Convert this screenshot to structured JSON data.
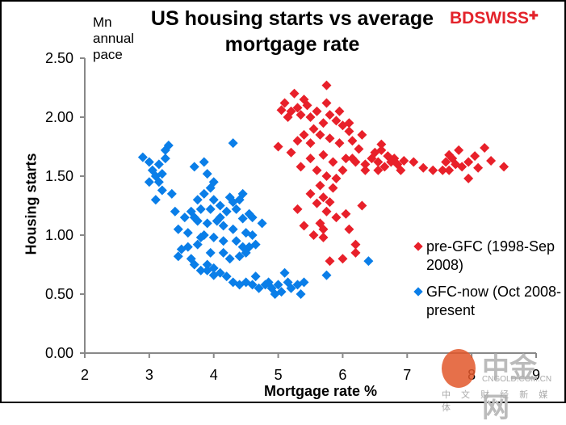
{
  "logo": {
    "text_bd": "BD",
    "text_swiss": "SWISS",
    "brand_color": "#e3232b"
  },
  "watermark": {
    "name": "中金网",
    "url": "CNGOLD.COM.CN",
    "subtitle": "中 文 财 经 新 媒 体"
  },
  "chart_data": {
    "type": "scatter",
    "title": "US housing starts vs average mortgage rate",
    "unit_label": "Mn annual pace",
    "xlabel": "Mortgage rate %",
    "ylabel": "Housing starts",
    "xlim": [
      2,
      9
    ],
    "ylim": [
      0,
      2.5
    ],
    "xticks": [
      "2",
      "3",
      "4",
      "5",
      "6",
      "7",
      "8",
      "9"
    ],
    "yticks": [
      "0.00",
      "0.50",
      "1.00",
      "1.50",
      "2.00",
      "2.50"
    ],
    "grid": false,
    "legend_position": "right",
    "series": [
      {
        "name": "pre-GFC (1998-Sep 2008)",
        "color": "#e8202a",
        "points": [
          [
            5.75,
            2.27
          ],
          [
            5.25,
            2.2
          ],
          [
            5.4,
            2.15
          ],
          [
            5.1,
            2.12
          ],
          [
            5.3,
            2.08
          ],
          [
            5.45,
            2.1
          ],
          [
            5.2,
            2.05
          ],
          [
            5.35,
            2.02
          ],
          [
            5.15,
            2.0
          ],
          [
            5.05,
            2.06
          ],
          [
            5.5,
            2.0
          ],
          [
            5.6,
            2.05
          ],
          [
            5.75,
            2.12
          ],
          [
            5.8,
            2.02
          ],
          [
            5.9,
            1.97
          ],
          [
            5.7,
            1.95
          ],
          [
            6.0,
            1.93
          ],
          [
            6.1,
            1.88
          ],
          [
            5.55,
            1.9
          ],
          [
            5.4,
            1.85
          ],
          [
            5.65,
            1.85
          ],
          [
            5.3,
            1.8
          ],
          [
            5.5,
            1.78
          ],
          [
            5.8,
            1.82
          ],
          [
            5.95,
            1.78
          ],
          [
            6.15,
            1.8
          ],
          [
            6.3,
            1.85
          ],
          [
            6.25,
            1.73
          ],
          [
            5.0,
            1.75
          ],
          [
            5.2,
            1.7
          ],
          [
            5.5,
            1.65
          ],
          [
            5.7,
            1.68
          ],
          [
            5.85,
            1.62
          ],
          [
            6.05,
            1.65
          ],
          [
            6.2,
            1.62
          ],
          [
            5.35,
            1.58
          ],
          [
            5.6,
            1.55
          ],
          [
            5.75,
            1.5
          ],
          [
            5.9,
            1.48
          ],
          [
            6.0,
            1.55
          ],
          [
            6.35,
            1.6
          ],
          [
            6.45,
            1.65
          ],
          [
            6.5,
            1.7
          ],
          [
            6.6,
            1.72
          ],
          [
            6.55,
            1.62
          ],
          [
            6.7,
            1.67
          ],
          [
            6.65,
            1.58
          ],
          [
            6.75,
            1.62
          ],
          [
            6.8,
            1.65
          ],
          [
            6.85,
            1.6
          ],
          [
            6.9,
            1.55
          ],
          [
            6.95,
            1.63
          ],
          [
            6.6,
            1.77
          ],
          [
            6.55,
            1.55
          ],
          [
            7.1,
            1.62
          ],
          [
            7.25,
            1.57
          ],
          [
            7.4,
            1.55
          ],
          [
            7.55,
            1.55
          ],
          [
            7.6,
            1.62
          ],
          [
            7.65,
            1.68
          ],
          [
            7.7,
            1.65
          ],
          [
            7.75,
            1.6
          ],
          [
            7.65,
            1.55
          ],
          [
            7.85,
            1.58
          ],
          [
            7.8,
            1.72
          ],
          [
            7.95,
            1.62
          ],
          [
            8.05,
            1.67
          ],
          [
            8.1,
            1.57
          ],
          [
            8.2,
            1.74
          ],
          [
            8.3,
            1.63
          ],
          [
            7.95,
            1.48
          ],
          [
            8.5,
            1.58
          ],
          [
            6.15,
            1.65
          ],
          [
            5.65,
            1.42
          ],
          [
            5.85,
            1.4
          ],
          [
            5.5,
            1.35
          ],
          [
            5.7,
            1.32
          ],
          [
            5.8,
            1.28
          ],
          [
            5.6,
            1.27
          ],
          [
            5.3,
            1.22
          ],
          [
            5.75,
            1.2
          ],
          [
            6.05,
            1.18
          ],
          [
            5.65,
            1.1
          ],
          [
            5.4,
            1.08
          ],
          [
            5.7,
            1.05
          ],
          [
            6.1,
            1.05
          ],
          [
            5.55,
            1.0
          ],
          [
            5.7,
            0.98
          ],
          [
            6.2,
            0.92
          ],
          [
            6.2,
            0.85
          ],
          [
            6.0,
            0.8
          ],
          [
            5.8,
            0.78
          ],
          [
            5.9,
            1.15
          ],
          [
            6.3,
            1.25
          ],
          [
            6.35,
            1.55
          ],
          [
            6.1,
            1.95
          ],
          [
            5.95,
            2.05
          ]
        ]
      },
      {
        "name": "GFC-now (Oct 2008-present",
        "color": "#0a7ee8",
        "points": [
          [
            3.3,
            1.76
          ],
          [
            3.25,
            1.72
          ],
          [
            2.9,
            1.66
          ],
          [
            3.0,
            1.62
          ],
          [
            3.15,
            1.6
          ],
          [
            3.25,
            1.65
          ],
          [
            3.05,
            1.55
          ],
          [
            3.1,
            1.5
          ],
          [
            3.2,
            1.52
          ],
          [
            3.0,
            1.45
          ],
          [
            3.15,
            1.45
          ],
          [
            3.2,
            1.38
          ],
          [
            3.1,
            1.3
          ],
          [
            3.35,
            1.35
          ],
          [
            4.3,
            1.78
          ],
          [
            3.85,
            1.62
          ],
          [
            3.7,
            1.58
          ],
          [
            3.9,
            1.52
          ],
          [
            3.75,
            1.3
          ],
          [
            3.85,
            1.35
          ],
          [
            4.0,
            1.3
          ],
          [
            4.25,
            1.32
          ],
          [
            4.4,
            1.3
          ],
          [
            4.45,
            1.35
          ],
          [
            4.1,
            1.25
          ],
          [
            3.95,
            1.22
          ],
          [
            3.8,
            1.22
          ],
          [
            3.65,
            1.2
          ],
          [
            4.2,
            1.2
          ],
          [
            4.35,
            1.22
          ],
          [
            4.55,
            1.18
          ],
          [
            4.6,
            1.15
          ],
          [
            4.75,
            1.1
          ],
          [
            3.4,
            1.2
          ],
          [
            3.55,
            1.15
          ],
          [
            3.75,
            1.12
          ],
          [
            3.9,
            1.1
          ],
          [
            4.05,
            1.12
          ],
          [
            4.15,
            1.08
          ],
          [
            4.3,
            1.05
          ],
          [
            4.5,
            1.02
          ],
          [
            4.6,
            1.0
          ],
          [
            3.45,
            1.05
          ],
          [
            3.6,
            1.02
          ],
          [
            3.85,
            1.0
          ],
          [
            4.0,
            0.98
          ],
          [
            4.15,
            0.95
          ],
          [
            4.35,
            0.95
          ],
          [
            4.45,
            0.9
          ],
          [
            4.55,
            0.9
          ],
          [
            4.65,
            0.92
          ],
          [
            3.6,
            0.9
          ],
          [
            3.75,
            0.92
          ],
          [
            3.95,
            0.85
          ],
          [
            4.15,
            0.85
          ],
          [
            4.4,
            0.82
          ],
          [
            4.5,
            0.85
          ],
          [
            3.65,
            0.8
          ],
          [
            3.7,
            0.75
          ],
          [
            3.9,
            0.75
          ],
          [
            4.0,
            0.72
          ],
          [
            4.25,
            0.8
          ],
          [
            3.5,
            0.88
          ],
          [
            3.45,
            0.82
          ],
          [
            3.8,
            0.98
          ],
          [
            3.8,
            0.7
          ],
          [
            3.9,
            0.7
          ],
          [
            4.0,
            0.66
          ],
          [
            4.1,
            0.68
          ],
          [
            4.2,
            0.65
          ],
          [
            4.3,
            0.6
          ],
          [
            4.4,
            0.58
          ],
          [
            4.5,
            0.6
          ],
          [
            4.6,
            0.58
          ],
          [
            4.7,
            0.55
          ],
          [
            4.8,
            0.58
          ],
          [
            4.85,
            0.6
          ],
          [
            4.9,
            0.55
          ],
          [
            4.95,
            0.5
          ],
          [
            5.0,
            0.58
          ],
          [
            5.05,
            0.52
          ],
          [
            5.15,
            0.6
          ],
          [
            5.2,
            0.55
          ],
          [
            5.3,
            0.58
          ],
          [
            5.35,
            0.5
          ],
          [
            5.4,
            0.6
          ],
          [
            5.1,
            0.68
          ],
          [
            4.65,
            0.65
          ],
          [
            4.1,
            1.15
          ],
          [
            3.95,
            1.4
          ],
          [
            4.0,
            1.45
          ],
          [
            5.75,
            0.66
          ],
          [
            6.4,
            0.78
          ],
          [
            4.3,
            1.28
          ],
          [
            3.7,
            1.15
          ],
          [
            4.45,
            1.14
          ]
        ]
      }
    ]
  }
}
